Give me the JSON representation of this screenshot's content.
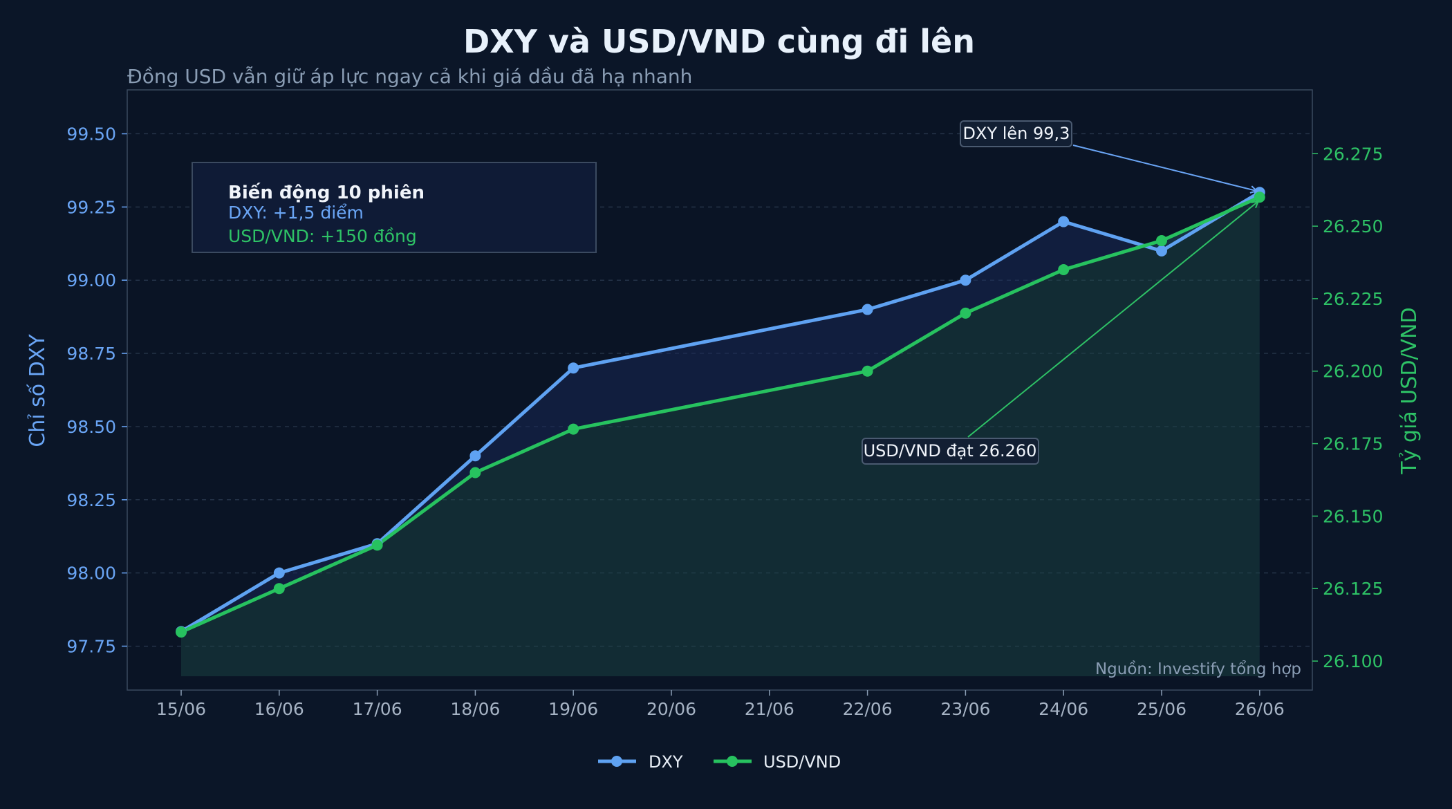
{
  "chart_data": {
    "type": "line",
    "title": "DXY và USD/VND cùng đi lên",
    "subtitle": "Đồng USD vẫn giữ áp lực ngay cả khi giá dầu đã hạ nhanh",
    "x_tick_labels": [
      "15/06",
      "16/06",
      "17/06",
      "18/06",
      "19/06",
      "20/06",
      "21/06",
      "22/06",
      "23/06",
      "24/06",
      "25/06",
      "26/06"
    ],
    "x_range": [
      "15/06",
      "26/06"
    ],
    "y_left": {
      "label": "Chỉ số DXY",
      "range": [
        97.6,
        99.65
      ],
      "ticks": [
        97.75,
        98.0,
        98.25,
        98.5,
        98.75,
        99.0,
        99.25,
        99.5
      ],
      "tick_labels": [
        "97.75",
        "98.00",
        "98.25",
        "98.50",
        "98.75",
        "99.00",
        "99.25",
        "99.50"
      ],
      "color": "#6aa5f5"
    },
    "y_right": {
      "label": "Tỷ giá USD/VND",
      "range": [
        26090,
        26297
      ],
      "ticks": [
        26100,
        26125,
        26150,
        26175,
        26200,
        26225,
        26250,
        26275
      ],
      "tick_labels": [
        "26.100",
        "26.125",
        "26.150",
        "26.175",
        "26.200",
        "26.225",
        "26.250",
        "26.275"
      ],
      "color": "#2ec266"
    },
    "series": [
      {
        "name": "DXY",
        "axis": "left",
        "color": "#5fa2f2",
        "x": [
          "15/06",
          "16/06",
          "17/06",
          "18/06",
          "19/06",
          "22/06",
          "23/06",
          "24/06",
          "25/06",
          "26/06"
        ],
        "values": [
          97.8,
          98.0,
          98.1,
          98.4,
          98.7,
          98.9,
          99.0,
          99.2,
          99.1,
          99.3
        ]
      },
      {
        "name": "USD/VND",
        "axis": "right",
        "color": "#27c25f",
        "x": [
          "15/06",
          "16/06",
          "17/06",
          "18/06",
          "19/06",
          "22/06",
          "23/06",
          "24/06",
          "25/06",
          "26/06"
        ],
        "values": [
          26110,
          26125,
          26140,
          26165,
          26180,
          26200,
          26220,
          26235,
          26245,
          26260
        ]
      }
    ],
    "legend": {
      "placement": "bottom-center",
      "items": [
        "DXY",
        "USD/VND"
      ]
    },
    "summary_box": {
      "title": "Biến động 10 phiên",
      "dxy_line": "DXY: +1,5 điểm",
      "vnd_line": "USD/VND: +150 đồng"
    },
    "annotations": [
      {
        "text": "DXY lên 99,3",
        "x": "26/06",
        "series": "DXY",
        "y": 99.3
      },
      {
        "text": "USD/VND đạt 26.260",
        "x": "26/06",
        "series": "USD/VND",
        "y": 26260
      }
    ],
    "source": "Nguồn: Investify tổng hợp",
    "grid": true
  }
}
